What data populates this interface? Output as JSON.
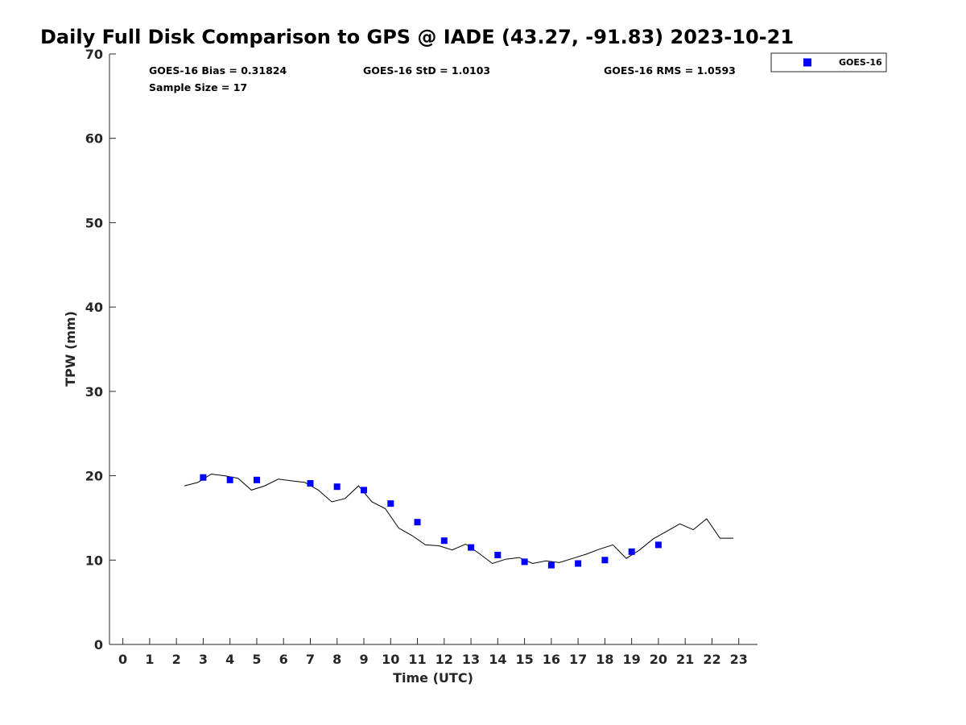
{
  "chart_data": {
    "type": "scatter",
    "title": "Daily Full Disk Comparison to GPS @ IADE (43.27, -91.83) 2023-10-21",
    "xlabel": "Time (UTC)",
    "ylabel": "TPW (mm)",
    "xlim": [
      -0.5,
      23.7
    ],
    "ylim": [
      0,
      70
    ],
    "xticks": [
      "0",
      "1",
      "2",
      "3",
      "4",
      "5",
      "6",
      "7",
      "8",
      "9",
      "10",
      "11",
      "12",
      "13",
      "14",
      "15",
      "16",
      "17",
      "18",
      "19",
      "20",
      "21",
      "22",
      "23"
    ],
    "yticks": [
      "0",
      "10",
      "20",
      "30",
      "40",
      "50",
      "60",
      "70"
    ],
    "grid": false,
    "legend_position": "top-right-outside",
    "stats": {
      "bias": "GOES-16 Bias = 0.31824",
      "std": "GOES-16 StD = 1.0103",
      "rms": "GOES-16 RMS = 1.0593",
      "sample": "Sample Size = 17"
    },
    "colors": {
      "goes": "#0000ff",
      "line": "#000000"
    },
    "series": [
      {
        "name": "GOES-16",
        "kind": "scatter",
        "x": [
          3,
          4,
          5,
          7,
          8,
          9,
          10,
          11,
          12,
          13,
          14,
          15,
          16,
          17,
          18,
          19,
          20
        ],
        "y": [
          19.8,
          19.5,
          19.5,
          19.1,
          18.7,
          18.3,
          16.7,
          14.5,
          12.3,
          11.5,
          10.6,
          9.8,
          9.4,
          9.6,
          10.0,
          11.0,
          11.8
        ]
      },
      {
        "kind": "line",
        "x": [
          2.3,
          2.8,
          3.3,
          3.8,
          4.3,
          4.8,
          5.3,
          5.8,
          6.3,
          6.8,
          7.3,
          7.8,
          8.3,
          8.8,
          9.3,
          9.8,
          10.3,
          10.8,
          11.3,
          11.8,
          12.3,
          12.8,
          13.3,
          13.8,
          14.3,
          14.8,
          15.3,
          15.8,
          16.3,
          16.8,
          17.3,
          17.8,
          18.3,
          18.8,
          19.3,
          19.8,
          20.3,
          20.8,
          21.3,
          21.8,
          22.3,
          22.8
        ],
        "y": [
          18.8,
          19.2,
          20.2,
          20.0,
          19.7,
          18.3,
          18.8,
          19.6,
          19.4,
          19.2,
          18.3,
          16.9,
          17.3,
          18.8,
          16.9,
          16.1,
          13.8,
          12.9,
          11.8,
          11.7,
          11.2,
          11.9,
          10.8,
          9.6,
          10.1,
          10.3,
          9.6,
          9.9,
          9.7,
          10.2,
          10.7,
          11.3,
          11.8,
          10.2,
          11.2,
          12.5,
          13.4,
          14.3,
          13.6,
          14.9,
          12.6,
          12.6
        ]
      }
    ]
  }
}
